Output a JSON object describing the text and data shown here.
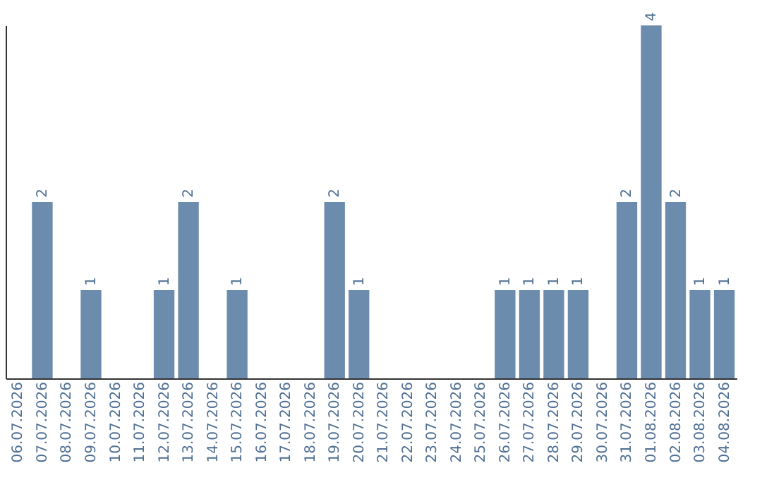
{
  "chart_data": {
    "type": "bar",
    "categories": [
      "06.07.2026",
      "07.07.2026",
      "08.07.2026",
      "09.07.2026",
      "10.07.2026",
      "11.07.2026",
      "12.07.2026",
      "13.07.2026",
      "14.07.2026",
      "15.07.2026",
      "16.07.2026",
      "17.07.2026",
      "18.07.2026",
      "19.07.2026",
      "20.07.2026",
      "21.07.2026",
      "22.07.2026",
      "23.07.2026",
      "24.07.2026",
      "25.07.2026",
      "26.07.2026",
      "27.07.2026",
      "28.07.2026",
      "29.07.2026",
      "30.07.2026",
      "31.07.2026",
      "01.08.2026",
      "02.08.2026",
      "03.08.2026",
      "04.08.2026"
    ],
    "values": [
      0,
      2,
      0,
      1,
      0,
      0,
      1,
      2,
      0,
      1,
      0,
      0,
      0,
      2,
      1,
      0,
      0,
      0,
      0,
      0,
      1,
      1,
      1,
      1,
      0,
      2,
      4,
      2,
      1,
      1
    ],
    "value_labels": [
      null,
      "2",
      null,
      "1",
      null,
      null,
      "1",
      "2",
      null,
      "1",
      null,
      null,
      null,
      "2",
      "1",
      null,
      null,
      null,
      null,
      null,
      "1",
      "1",
      "1",
      "1",
      null,
      "2",
      "4",
      "2",
      "1",
      "1"
    ],
    "color": "#6c8cad",
    "tick_labels": "x",
    "grid": false
  }
}
